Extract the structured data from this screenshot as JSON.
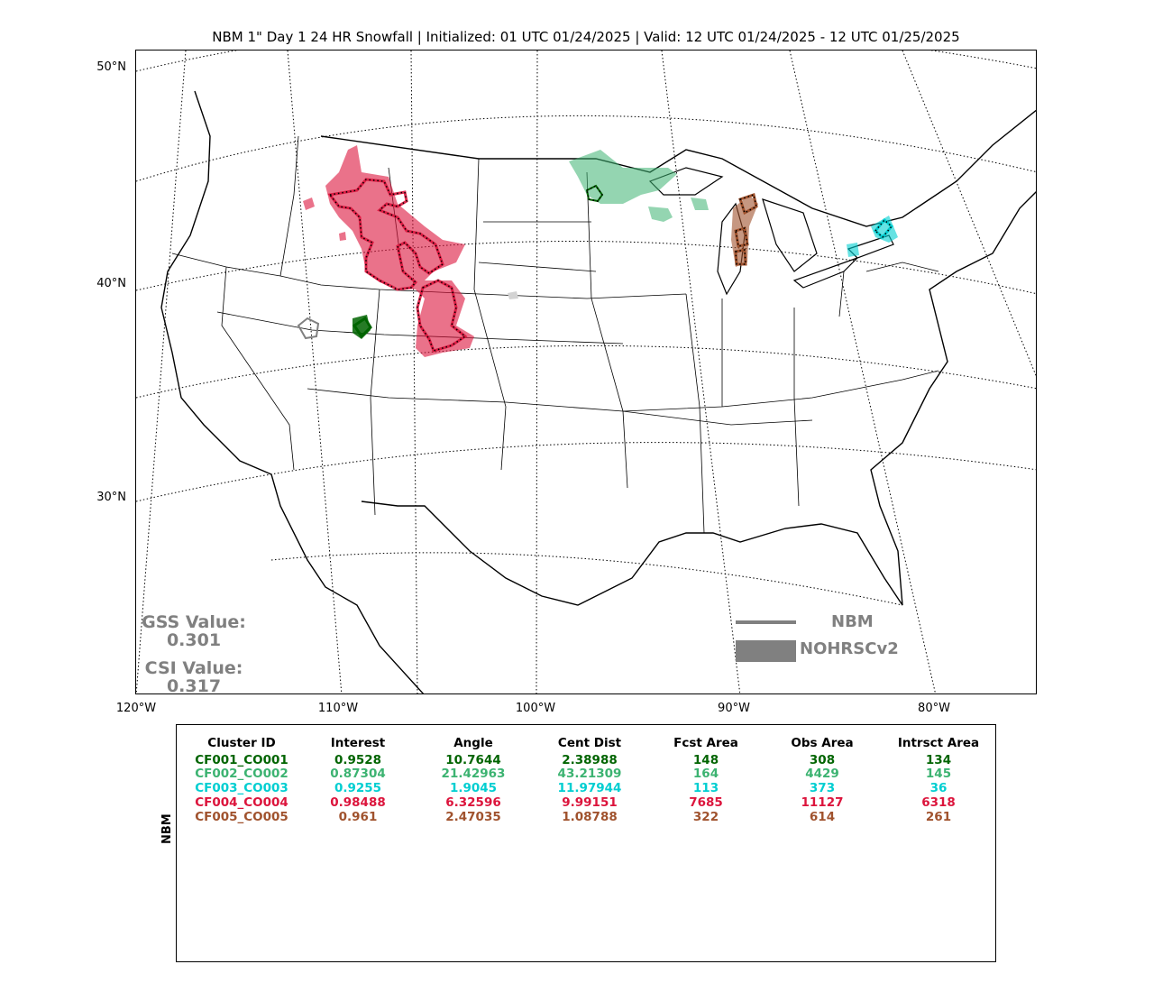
{
  "title": "NBM 1\" Day 1 24 HR Snowfall | Initialized: 01 UTC 01/24/2025 | Valid: 12 UTC 01/24/2025 - 12 UTC 01/25/2025",
  "map": {
    "lat_labels": [
      "50°N",
      "40°N",
      "30°N"
    ],
    "lon_labels": [
      "120°W",
      "110°W",
      "100°W",
      "90°W",
      "80°W"
    ],
    "scores": {
      "gss_label": "GSS Value:",
      "gss_value": "0.301",
      "csi_label": "CSI Value:",
      "csi_value": "0.317"
    },
    "legend": {
      "line_label": "NBM",
      "fill_label": "NOHRSCv2",
      "line_color": "#808080",
      "fill_color": "#808080"
    },
    "clusters": [
      {
        "id": "CF001_CO001",
        "color": "#006400"
      },
      {
        "id": "CF002_CO002",
        "color": "#3cb371"
      },
      {
        "id": "CF003_CO003",
        "color": "#00ced1"
      },
      {
        "id": "CF004_CO004",
        "color": "#dc143c"
      },
      {
        "id": "CF005_CO005",
        "color": "#a0522d"
      }
    ]
  },
  "table": {
    "side_label": "NBM",
    "headers": [
      "Cluster ID",
      "Interest",
      "Angle",
      "Cent Dist",
      "Fcst Area",
      "Obs Area",
      "Intrsct Area"
    ],
    "rows": [
      {
        "color": "#006400",
        "cells": [
          "CF001_CO001",
          "0.9528",
          "10.7644",
          "2.38988",
          "148",
          "308",
          "134"
        ]
      },
      {
        "color": "#3cb371",
        "cells": [
          "CF002_CO002",
          "0.87304",
          "21.42963",
          "43.21309",
          "164",
          "4429",
          "145"
        ]
      },
      {
        "color": "#00ced1",
        "cells": [
          "CF003_CO003",
          "0.9255",
          "1.9045",
          "11.97944",
          "113",
          "373",
          "36"
        ]
      },
      {
        "color": "#dc143c",
        "cells": [
          "CF004_CO004",
          "0.98488",
          "6.32596",
          "9.99151",
          "7685",
          "11127",
          "6318"
        ]
      },
      {
        "color": "#a0522d",
        "cells": [
          "CF005_CO005",
          "0.961",
          "2.47035",
          "1.08788",
          "322",
          "614",
          "261"
        ]
      }
    ]
  }
}
